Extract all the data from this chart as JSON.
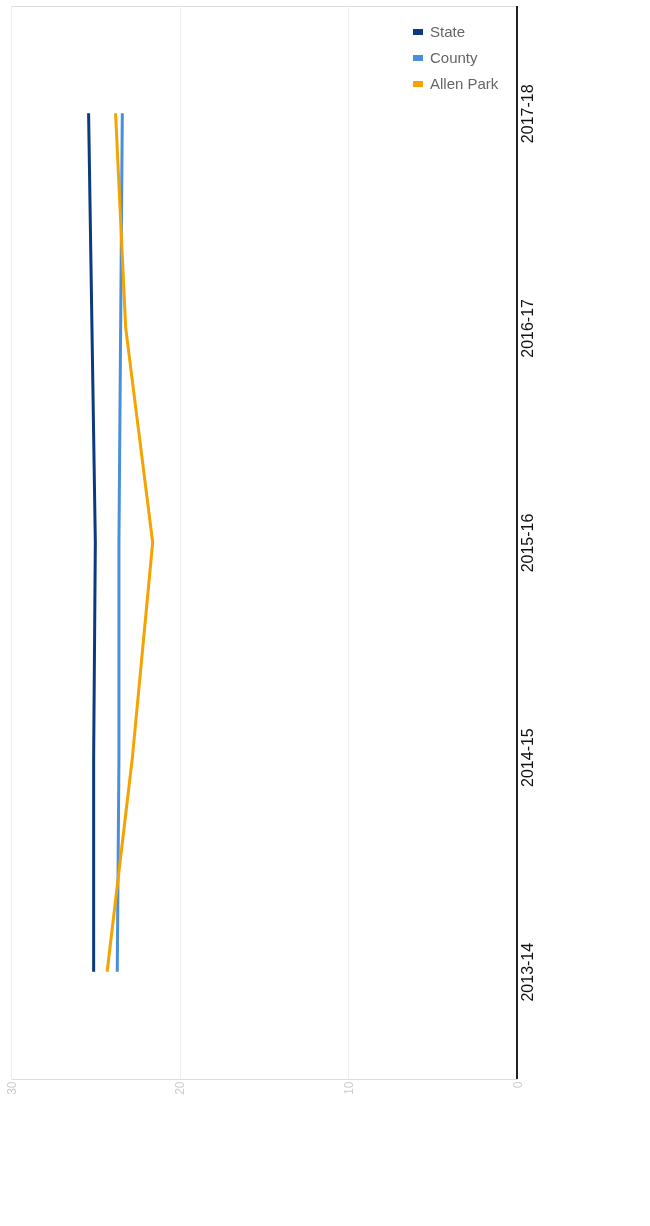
{
  "chart_data": {
    "type": "line",
    "orientation": "horizontal",
    "categories": [
      "2017-18",
      "2016-17",
      "2015-16",
      "2014-15",
      "2013-14"
    ],
    "series": [
      {
        "name": "State",
        "color": "#0b3a7e",
        "values": [
          25.4,
          25.2,
          25.0,
          25.1,
          25.1
        ]
      },
      {
        "name": "County",
        "color": "#4a8fdb",
        "values": [
          23.4,
          23.5,
          23.6,
          23.6,
          23.7
        ]
      },
      {
        "name": "Allen Park",
        "color": "#f5a300",
        "values": [
          23.8,
          23.2,
          21.6,
          22.8,
          24.3
        ]
      }
    ],
    "xlim": [
      30,
      0
    ],
    "xticks": [
      0,
      10,
      20,
      30
    ],
    "grid": "x",
    "legend": "top right"
  }
}
